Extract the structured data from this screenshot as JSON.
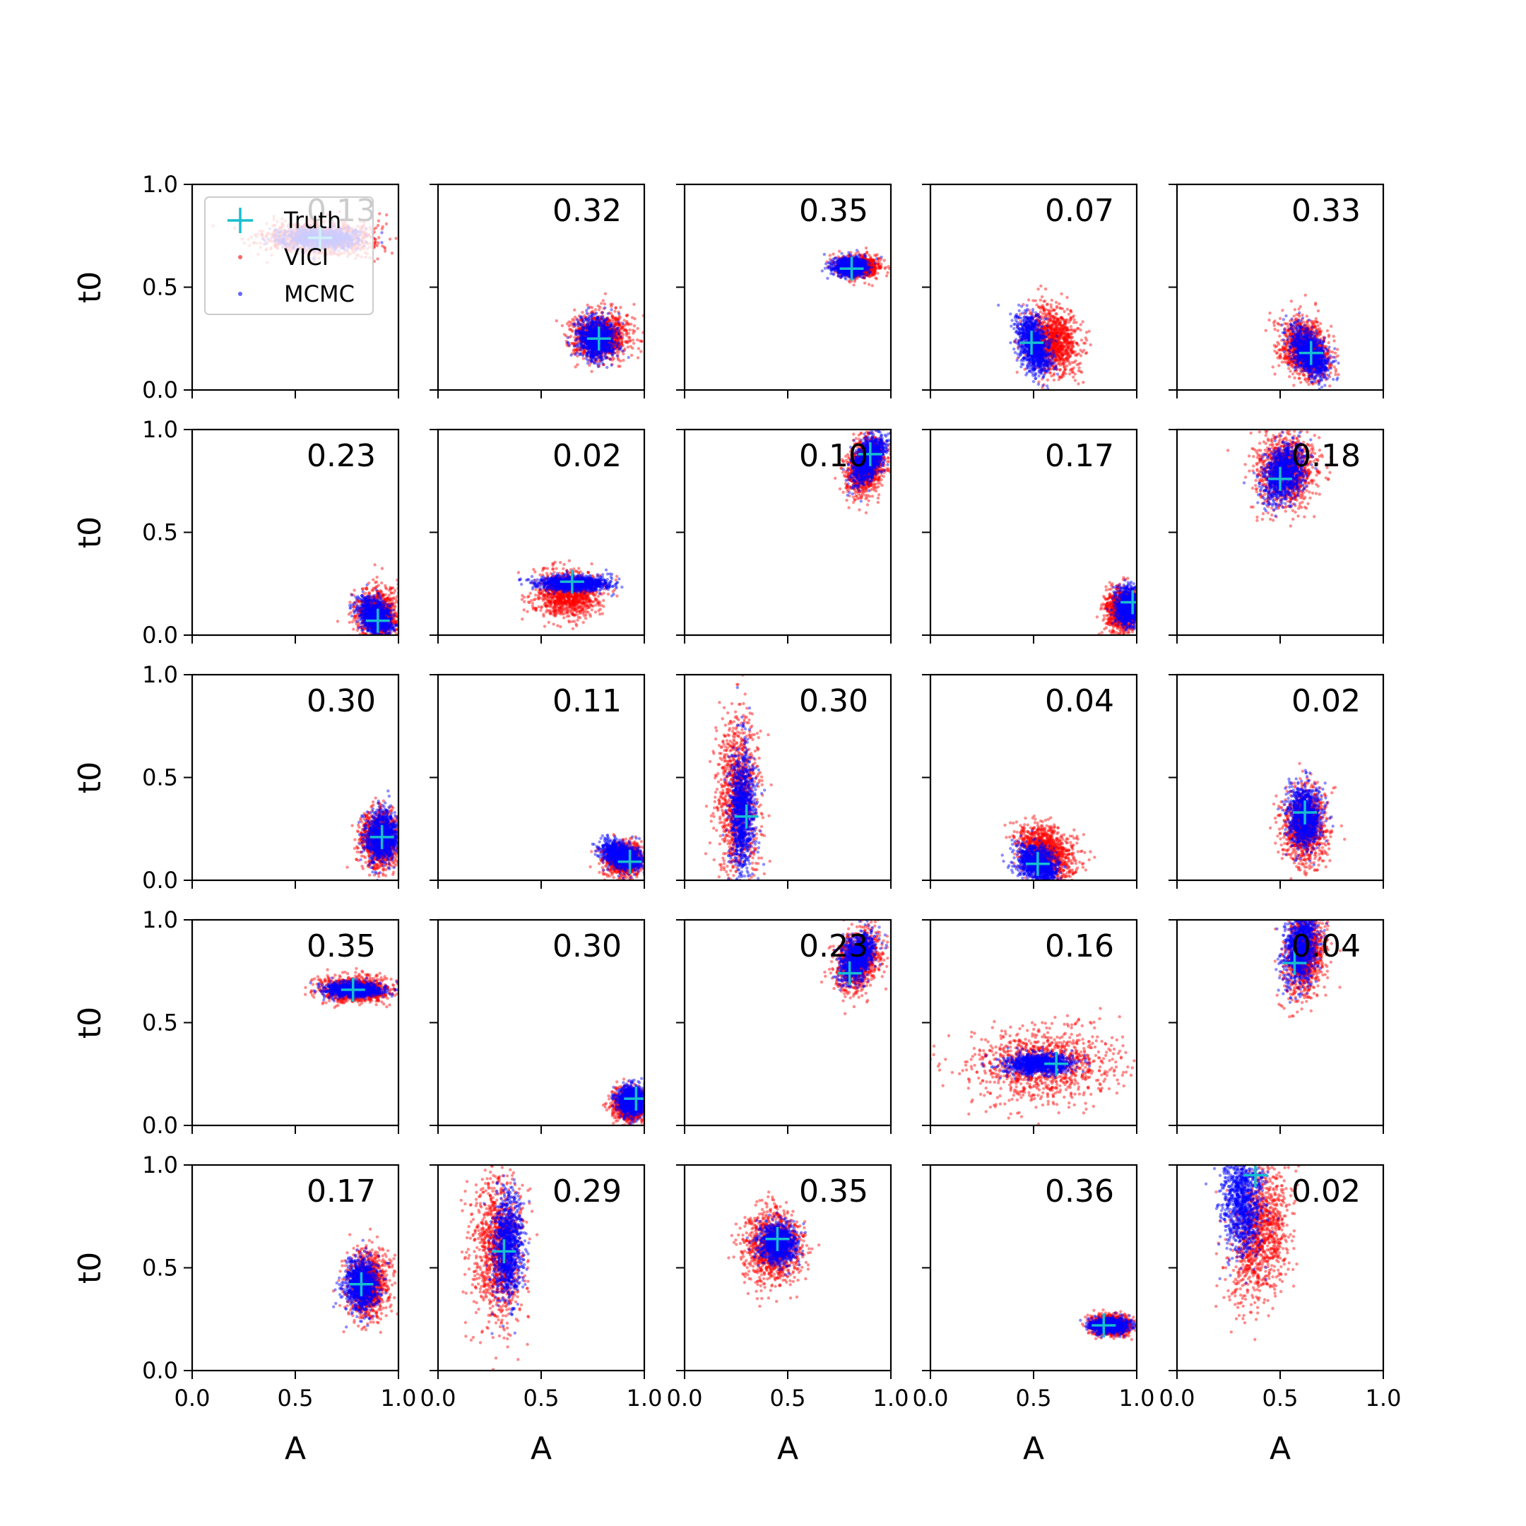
{
  "chart_data": {
    "type": "scatter",
    "layout": {
      "rows": 5,
      "cols": 5
    },
    "xlabel": "A",
    "ylabel": "t0",
    "xlim": [
      0,
      1
    ],
    "ylim": [
      0,
      1
    ],
    "xticks": [
      "0.0",
      "0.5",
      "1.0"
    ],
    "yticks": [
      "0.0",
      "0.5",
      "1.0"
    ],
    "legend": {
      "placement": "upper-left of first panel",
      "entries": [
        {
          "name": "Truth",
          "marker": "plus",
          "color": "#17becf"
        },
        {
          "name": "VICI",
          "marker": "dot",
          "color": "#ff0000"
        },
        {
          "name": "MCMC",
          "marker": "dot",
          "color": "#0000ff"
        }
      ]
    },
    "series_colors": {
      "VICI": "#ff0000",
      "MCMC": "#0000ff",
      "Truth": "#17becf"
    },
    "panels": [
      {
        "label": "0.13",
        "truth": [
          0.62,
          0.74
        ],
        "vici": {
          "center": [
            0.62,
            0.74
          ],
          "spread": [
            0.13,
            0.04
          ],
          "rho": 0.0
        },
        "mcmc": {
          "center": [
            0.62,
            0.74
          ],
          "spread": [
            0.09,
            0.025
          ],
          "rho": 0.0
        }
      },
      {
        "label": "0.32",
        "truth": [
          0.78,
          0.25
        ],
        "vici": {
          "center": [
            0.79,
            0.26
          ],
          "spread": [
            0.07,
            0.055
          ],
          "rho": 0.0
        },
        "mcmc": {
          "center": [
            0.77,
            0.25
          ],
          "spread": [
            0.045,
            0.05
          ],
          "rho": 0.0
        }
      },
      {
        "label": "0.35",
        "truth": [
          0.81,
          0.59
        ],
        "vici": {
          "center": [
            0.84,
            0.6
          ],
          "spread": [
            0.05,
            0.025
          ],
          "rho": 0.0
        },
        "mcmc": {
          "center": [
            0.8,
            0.6
          ],
          "spread": [
            0.04,
            0.022
          ],
          "rho": 0.0
        }
      },
      {
        "label": "0.07",
        "truth": [
          0.49,
          0.23
        ],
        "vici": {
          "center": [
            0.59,
            0.24
          ],
          "spread": [
            0.06,
            0.08
          ],
          "rho": -0.2
        },
        "mcmc": {
          "center": [
            0.5,
            0.22
          ],
          "spread": [
            0.04,
            0.07
          ],
          "rho": -0.4
        }
      },
      {
        "label": "0.33",
        "truth": [
          0.65,
          0.18
        ],
        "vici": {
          "center": [
            0.62,
            0.2
          ],
          "spread": [
            0.06,
            0.07
          ],
          "rho": -0.2
        },
        "mcmc": {
          "center": [
            0.64,
            0.18
          ],
          "spread": [
            0.045,
            0.06
          ],
          "rho": -0.5
        }
      },
      {
        "label": "0.23",
        "truth": [
          0.9,
          0.07
        ],
        "vici": {
          "center": [
            0.9,
            0.1
          ],
          "spread": [
            0.05,
            0.06
          ],
          "rho": 0.0
        },
        "mcmc": {
          "center": [
            0.89,
            0.09
          ],
          "spread": [
            0.04,
            0.045
          ],
          "rho": -0.3
        }
      },
      {
        "label": "0.02",
        "truth": [
          0.65,
          0.26
        ],
        "vici": {
          "center": [
            0.63,
            0.2
          ],
          "spread": [
            0.08,
            0.055
          ],
          "rho": 0.0
        },
        "mcmc": {
          "center": [
            0.66,
            0.25
          ],
          "spread": [
            0.09,
            0.018
          ],
          "rho": 0.0
        }
      },
      {
        "label": "0.10",
        "truth": [
          0.9,
          0.88
        ],
        "vici": {
          "center": [
            0.88,
            0.82
          ],
          "spread": [
            0.045,
            0.07
          ],
          "rho": 0.2
        },
        "mcmc": {
          "center": [
            0.89,
            0.86
          ],
          "spread": [
            0.04,
            0.06
          ],
          "rho": 0.5
        }
      },
      {
        "label": "0.17",
        "truth": [
          0.98,
          0.16
        ],
        "vici": {
          "center": [
            0.93,
            0.12
          ],
          "spread": [
            0.04,
            0.05
          ],
          "rho": 0.0
        },
        "mcmc": {
          "center": [
            0.96,
            0.14
          ],
          "spread": [
            0.03,
            0.045
          ],
          "rho": 0.0
        }
      },
      {
        "label": "0.18",
        "truth": [
          0.5,
          0.76
        ],
        "vici": {
          "center": [
            0.53,
            0.8
          ],
          "spread": [
            0.07,
            0.09
          ],
          "rho": 0.0
        },
        "mcmc": {
          "center": [
            0.52,
            0.79
          ],
          "spread": [
            0.05,
            0.07
          ],
          "rho": 0.3
        }
      },
      {
        "label": "0.30",
        "truth": [
          0.92,
          0.21
        ],
        "vici": {
          "center": [
            0.91,
            0.2
          ],
          "spread": [
            0.045,
            0.07
          ],
          "rho": 0.0
        },
        "mcmc": {
          "center": [
            0.92,
            0.21
          ],
          "spread": [
            0.04,
            0.06
          ],
          "rho": 0.0
        }
      },
      {
        "label": "0.11",
        "truth": [
          0.93,
          0.09
        ],
        "vici": {
          "center": [
            0.9,
            0.1
          ],
          "spread": [
            0.045,
            0.04
          ],
          "rho": 0.0
        },
        "mcmc": {
          "center": [
            0.89,
            0.12
          ],
          "spread": [
            0.05,
            0.035
          ],
          "rho": -0.4
        }
      },
      {
        "label": "0.30",
        "truth": [
          0.3,
          0.31
        ],
        "vici": {
          "center": [
            0.26,
            0.4
          ],
          "spread": [
            0.05,
            0.2
          ],
          "rho": 0.0
        },
        "mcmc": {
          "center": [
            0.28,
            0.33
          ],
          "spread": [
            0.03,
            0.15
          ],
          "rho": 0.0
        }
      },
      {
        "label": "0.04",
        "truth": [
          0.52,
          0.08
        ],
        "vici": {
          "center": [
            0.56,
            0.14
          ],
          "spread": [
            0.07,
            0.065
          ],
          "rho": -0.3
        },
        "mcmc": {
          "center": [
            0.52,
            0.08
          ],
          "spread": [
            0.05,
            0.045
          ],
          "rho": -0.3
        }
      },
      {
        "label": "0.02",
        "truth": [
          0.62,
          0.33
        ],
        "vici": {
          "center": [
            0.62,
            0.27
          ],
          "spread": [
            0.05,
            0.09
          ],
          "rho": 0.0
        },
        "mcmc": {
          "center": [
            0.62,
            0.31
          ],
          "spread": [
            0.04,
            0.075
          ],
          "rho": 0.0
        }
      },
      {
        "label": "0.35",
        "truth": [
          0.78,
          0.66
        ],
        "vici": {
          "center": [
            0.8,
            0.66
          ],
          "spread": [
            0.08,
            0.03
          ],
          "rho": 0.0
        },
        "mcmc": {
          "center": [
            0.78,
            0.66
          ],
          "spread": [
            0.07,
            0.018
          ],
          "rho": 0.0
        }
      },
      {
        "label": "0.30",
        "truth": [
          0.96,
          0.13
        ],
        "vici": {
          "center": [
            0.93,
            0.1
          ],
          "spread": [
            0.04,
            0.04
          ],
          "rho": 0.0
        },
        "mcmc": {
          "center": [
            0.94,
            0.12
          ],
          "spread": [
            0.035,
            0.035
          ],
          "rho": 0.0
        }
      },
      {
        "label": "0.23",
        "truth": [
          0.8,
          0.74
        ],
        "vici": {
          "center": [
            0.84,
            0.8
          ],
          "spread": [
            0.05,
            0.07
          ],
          "rho": 0.2
        },
        "mcmc": {
          "center": [
            0.84,
            0.82
          ],
          "spread": [
            0.04,
            0.06
          ],
          "rho": 0.4
        }
      },
      {
        "label": "0.16",
        "truth": [
          0.61,
          0.3
        ],
        "vici": {
          "center": [
            0.56,
            0.3
          ],
          "spread": [
            0.17,
            0.09
          ],
          "rho": 0.0
        },
        "mcmc": {
          "center": [
            0.53,
            0.3
          ],
          "spread": [
            0.08,
            0.025
          ],
          "rho": 0.0
        }
      },
      {
        "label": "0.04",
        "truth": [
          0.57,
          0.79
        ],
        "vici": {
          "center": [
            0.62,
            0.84
          ],
          "spread": [
            0.05,
            0.1
          ],
          "rho": 0.2
        },
        "mcmc": {
          "center": [
            0.6,
            0.87
          ],
          "spread": [
            0.04,
            0.09
          ],
          "rho": 0.3
        }
      },
      {
        "label": "0.17",
        "truth": [
          0.82,
          0.42
        ],
        "vici": {
          "center": [
            0.85,
            0.42
          ],
          "spread": [
            0.05,
            0.08
          ],
          "rho": 0.0
        },
        "mcmc": {
          "center": [
            0.82,
            0.42
          ],
          "spread": [
            0.04,
            0.06
          ],
          "rho": 0.0
        }
      },
      {
        "label": "0.29",
        "truth": [
          0.32,
          0.58
        ],
        "vici": {
          "center": [
            0.29,
            0.6
          ],
          "spread": [
            0.06,
            0.17
          ],
          "rho": 0.0
        },
        "mcmc": {
          "center": [
            0.34,
            0.6
          ],
          "spread": [
            0.035,
            0.13
          ],
          "rho": 0.0
        }
      },
      {
        "label": "0.35",
        "truth": [
          0.45,
          0.64
        ],
        "vici": {
          "center": [
            0.43,
            0.6
          ],
          "spread": [
            0.07,
            0.09
          ],
          "rho": 0.0
        },
        "mcmc": {
          "center": [
            0.45,
            0.62
          ],
          "spread": [
            0.045,
            0.045
          ],
          "rho": 0.0
        }
      },
      {
        "label": "0.36",
        "truth": [
          0.84,
          0.22
        ],
        "vici": {
          "center": [
            0.88,
            0.22
          ],
          "spread": [
            0.05,
            0.025
          ],
          "rho": 0.0
        },
        "mcmc": {
          "center": [
            0.87,
            0.22
          ],
          "spread": [
            0.045,
            0.018
          ],
          "rho": 0.0
        }
      },
      {
        "label": "0.02",
        "truth": [
          0.38,
          0.95
        ],
        "vici": {
          "center": [
            0.4,
            0.66
          ],
          "spread": [
            0.07,
            0.17
          ],
          "rho": 0.3
        },
        "mcmc": {
          "center": [
            0.32,
            0.82
          ],
          "spread": [
            0.05,
            0.13
          ],
          "rho": 0.0
        }
      }
    ]
  }
}
